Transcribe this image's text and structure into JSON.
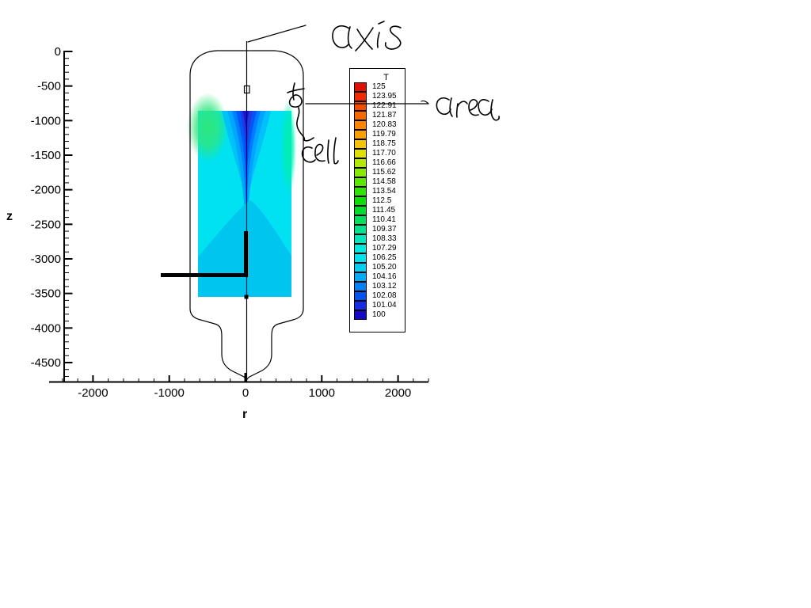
{
  "figure": {
    "axes": {
      "y": {
        "title": "z",
        "tick_labels": [
          "0",
          "-500",
          "-1000",
          "-1500",
          "-2000",
          "-2500",
          "-3000",
          "-3500",
          "-4000",
          "-4500"
        ]
      },
      "x": {
        "title": "r",
        "tick_labels": [
          "-2000",
          "-1000",
          "0",
          "1000",
          "2000"
        ]
      }
    },
    "legend": {
      "title": "T",
      "entries": [
        {
          "label": "125",
          "color": "#e10f00"
        },
        {
          "label": "123.95",
          "color": "#ee2c00"
        },
        {
          "label": "122.91",
          "color": "#f64a00"
        },
        {
          "label": "121.87",
          "color": "#fa6800"
        },
        {
          "label": "120.83",
          "color": "#fc8400"
        },
        {
          "label": "119.79",
          "color": "#fc9f00"
        },
        {
          "label": "118.75",
          "color": "#f4c400"
        },
        {
          "label": "117.70",
          "color": "#e0e000"
        },
        {
          "label": "116.66",
          "color": "#b4e800"
        },
        {
          "label": "115.62",
          "color": "#8ae900"
        },
        {
          "label": "114.58",
          "color": "#5ce700"
        },
        {
          "label": "113.54",
          "color": "#30e300"
        },
        {
          "label": "112.5",
          "color": "#0cdf00"
        },
        {
          "label": "111.45",
          "color": "#00dc28"
        },
        {
          "label": "110.41",
          "color": "#00df5c"
        },
        {
          "label": "109.37",
          "color": "#00e38e"
        },
        {
          "label": "108.33",
          "color": "#00e7bc"
        },
        {
          "label": "107.29",
          "color": "#00eadd"
        },
        {
          "label": "106.25",
          "color": "#00e3ee"
        },
        {
          "label": "105.20",
          "color": "#00cdf2"
        },
        {
          "label": "104.16",
          "color": "#00abf6"
        },
        {
          "label": "103.12",
          "color": "#0081f6"
        },
        {
          "label": "102.08",
          "color": "#0055f0"
        },
        {
          "label": "101.04",
          "color": "#152ce2"
        },
        {
          "label": "100",
          "color": "#1407c6"
        }
      ]
    },
    "annotations": {
      "axis_label": "axis",
      "area_label": "area",
      "cell_label": "cell"
    },
    "colors": {
      "ambient_cyan": "#00e2f1",
      "lower_mound": "#00c5ef",
      "green_left": "#2ee77c",
      "green_right": "#00efb0",
      "jet_bands": [
        "#00c2f8",
        "#00a5ff",
        "#007dff",
        "#0056f6",
        "#2338e2",
        "#1a18cf"
      ]
    }
  },
  "chart_data": {
    "type": "heatmap",
    "title": "",
    "xlabel": "r",
    "ylabel": "z",
    "xlim": [
      -2600,
      2400
    ],
    "ylim": [
      -4800,
      100
    ],
    "x_major_ticks": [
      -2000,
      -1000,
      0,
      1000,
      2000
    ],
    "x_minor_tick_step": 200,
    "y_major_ticks": [
      0,
      -500,
      -1000,
      -1500,
      -2000,
      -2500,
      -3000,
      -3500,
      -4000,
      -4500
    ],
    "y_minor_tick_step": 100,
    "grid": false,
    "colorbar": {
      "title": "T",
      "min": 100,
      "max": 125,
      "levels": [
        125,
        123.95,
        122.91,
        121.87,
        120.83,
        119.79,
        118.75,
        117.7,
        116.66,
        115.62,
        114.58,
        113.54,
        112.5,
        111.45,
        110.41,
        109.37,
        108.33,
        107.29,
        106.25,
        105.2,
        104.16,
        103.12,
        102.08,
        101.04,
        100
      ]
    },
    "features": [
      {
        "name": "vessel-outline",
        "description": "axisymmetric vessel cross-section; dome top at z≈0, straight walls at r≈±740 down to z≈-3750, tapering to a neck of r≈±340 below z≈-4000, rounded tip at z≈-4750 on the centerline"
      },
      {
        "name": "centerline",
        "description": "vertical symmetry axis at r=0 running the full height of the vessel (hand-labeled 'axis')"
      },
      {
        "name": "contour-flood-region",
        "r_range": [
          -620,
          600
        ],
        "z_range": [
          -860,
          -3550
        ],
        "description": "temperature flood: ambient ≈106 (cyan); cold jet of T≈100-104 (dark-to-light blue V) entering at top along r=0 and narrowing downward to z≈-3200; warmer ≈109-111 (green) patches near upper left and right walls; slightly cooler ≈104-105 mound filling the lower half below z≈-2600"
      },
      {
        "name": "probe-line",
        "description": "thick black L-shaped line: horizontal segment at z≈-3230 from r≈-1110 to r=0, vertical segment on r=0 from z≈-3230 up to z≈-2600"
      },
      {
        "name": "cell-marker",
        "description": "small open square on the centerline at r≈0, z≈-560 (hand-labeled 'cell')"
      },
      {
        "name": "node-marker",
        "description": "small filled square on the centerline at the bottom edge of the contour region, z≈-3540"
      }
    ],
    "hand_annotations": [
      "axis",
      "area",
      "cell"
    ]
  }
}
